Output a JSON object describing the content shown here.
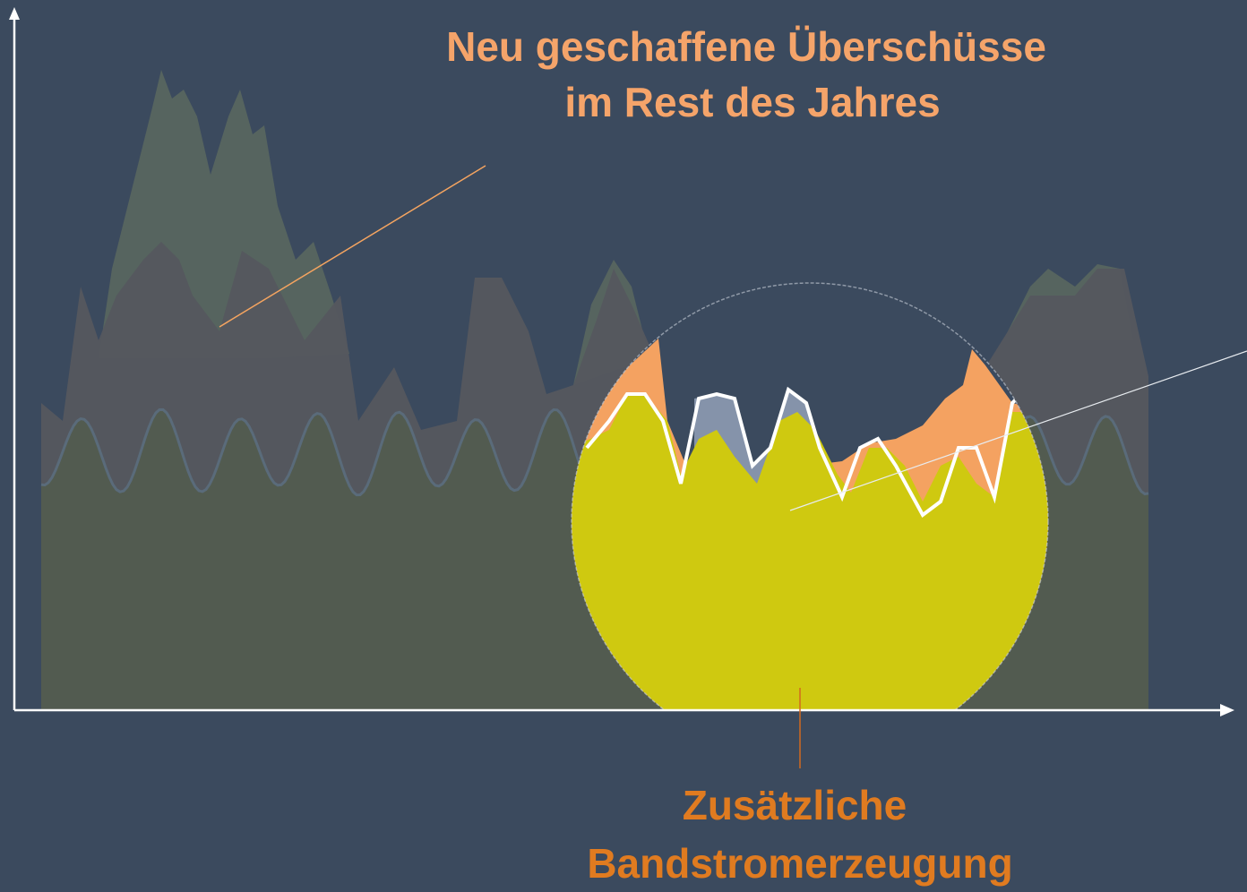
{
  "annotations": {
    "top": [
      "Neu geschaffene Überschüsse",
      "im Rest des Jahres"
    ],
    "bottom": [
      "Zusätzliche",
      "Bandstromerzeugung"
    ]
  }
}
